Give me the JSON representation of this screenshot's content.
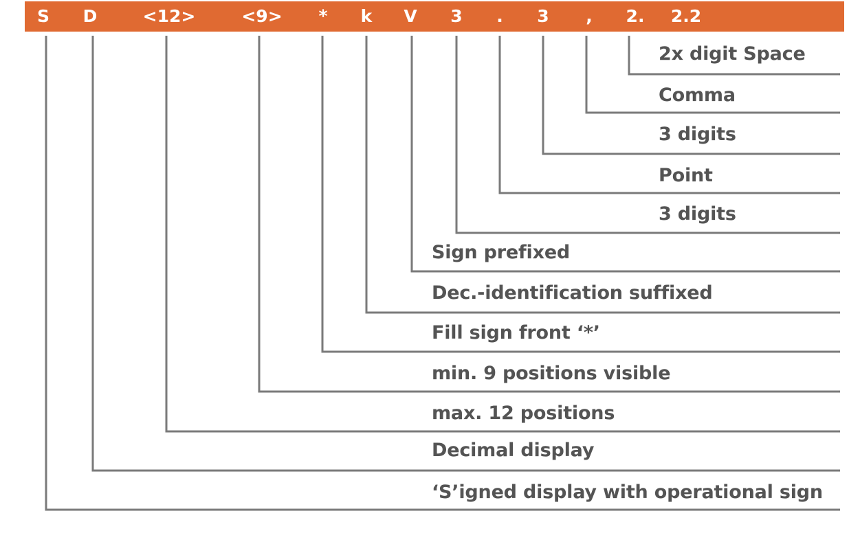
{
  "colors": {
    "header_bg": "#E06A32",
    "header_text": "#ffffff",
    "line": "#7a7a7a",
    "label_text": "#545454"
  },
  "format_tokens": [
    {
      "id": "S",
      "text": "S"
    },
    {
      "id": "D",
      "text": "D"
    },
    {
      "id": "max12",
      "text": "<12>"
    },
    {
      "id": "min9",
      "text": "<9>"
    },
    {
      "id": "star",
      "text": "*"
    },
    {
      "id": "k",
      "text": "k"
    },
    {
      "id": "V",
      "text": "V"
    },
    {
      "id": "digits3a",
      "text": "3"
    },
    {
      "id": "point",
      "text": "."
    },
    {
      "id": "digits3b",
      "text": "3"
    },
    {
      "id": "comma",
      "text": ","
    },
    {
      "id": "two",
      "text": "2."
    },
    {
      "id": "twotwo",
      "text": "2.2"
    }
  ],
  "labels": [
    {
      "id": "space2x",
      "text": "2x digit Space"
    },
    {
      "id": "comma",
      "text": "Comma"
    },
    {
      "id": "digits3b",
      "text": "3 digits"
    },
    {
      "id": "point",
      "text": "Point"
    },
    {
      "id": "digits3a",
      "text": "3 digits"
    },
    {
      "id": "V",
      "text": "Sign prefixed"
    },
    {
      "id": "k",
      "text": "Dec.-identification suffixed"
    },
    {
      "id": "star",
      "text": "Fill sign front ‘*’"
    },
    {
      "id": "min9",
      "text": "min. 9 positions visible"
    },
    {
      "id": "max12",
      "text": "max. 12 positions"
    },
    {
      "id": "D",
      "text": "Decimal display"
    },
    {
      "id": "S",
      "text": "‘S’igned display with operational sign"
    }
  ]
}
